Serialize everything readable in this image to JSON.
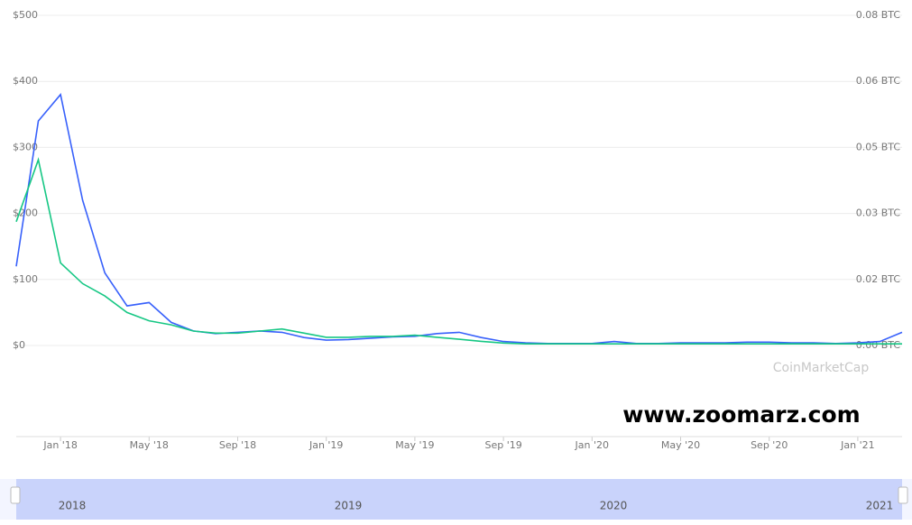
{
  "chart_data": {
    "type": "line",
    "x": [
      "2017-11",
      "2017-12",
      "2018-01",
      "2018-02",
      "2018-03",
      "2018-04",
      "2018-05",
      "2018-06",
      "2018-07",
      "2018-08",
      "2018-09",
      "2018-10",
      "2018-11",
      "2018-12",
      "2019-01",
      "2019-02",
      "2019-03",
      "2019-04",
      "2019-05",
      "2019-06",
      "2019-07",
      "2019-08",
      "2019-09",
      "2019-10",
      "2019-11",
      "2019-12",
      "2020-01",
      "2020-02",
      "2020-03",
      "2020-04",
      "2020-05",
      "2020-06",
      "2020-07",
      "2020-08",
      "2020-09",
      "2020-10",
      "2020-11",
      "2020-12",
      "2021-01",
      "2021-02",
      "2021-03"
    ],
    "xlim": [
      "2017-11",
      "2021-03"
    ],
    "xticks": [
      {
        "value": "2018-01",
        "label": "Jan '18"
      },
      {
        "value": "2018-05",
        "label": "May '18"
      },
      {
        "value": "2018-09",
        "label": "Sep '18"
      },
      {
        "value": "2019-01",
        "label": "Jan '19"
      },
      {
        "value": "2019-05",
        "label": "May '19"
      },
      {
        "value": "2019-09",
        "label": "Sep '19"
      },
      {
        "value": "2020-01",
        "label": "Jan '20"
      },
      {
        "value": "2020-05",
        "label": "May '20"
      },
      {
        "value": "2020-09",
        "label": "Sep '20"
      },
      {
        "value": "2021-01",
        "label": "Jan '21"
      }
    ],
    "ylim": [
      0,
      500
    ],
    "yticks": [
      {
        "value": 0,
        "label": "$0"
      },
      {
        "value": 100,
        "label": "$100"
      },
      {
        "value": 200,
        "label": "$200"
      },
      {
        "value": 300,
        "label": "$300"
      },
      {
        "value": 400,
        "label": "$400"
      },
      {
        "value": 500,
        "label": "$500"
      }
    ],
    "y2lim": [
      0,
      0.08
    ],
    "y2ticks": [
      {
        "value": 0,
        "label": "0.00 BTC"
      },
      {
        "value": 0.016,
        "label": "0.02 BTC"
      },
      {
        "value": 0.032,
        "label": "0.03 BTC"
      },
      {
        "value": 0.048,
        "label": "0.05 BTC"
      },
      {
        "value": 0.064,
        "label": "0.06 BTC"
      },
      {
        "value": 0.08,
        "label": "0.08 BTC"
      }
    ],
    "grid": true,
    "series": [
      {
        "color": "#3861fb",
        "values": [
          120,
          340,
          380,
          220,
          110,
          60,
          65,
          35,
          22,
          18,
          20,
          22,
          20,
          12,
          8,
          9,
          11,
          13,
          14,
          18,
          20,
          12,
          6,
          4,
          3,
          3,
          3,
          6,
          3,
          3,
          4,
          4,
          4,
          5,
          5,
          4,
          4,
          3,
          4,
          6,
          20
        ]
      },
      {
        "color": "#16c784",
        "axis": "y2",
        "values": [
          0.03,
          0.045,
          0.02,
          0.015,
          0.012,
          0.008,
          0.006,
          0.005,
          0.0035,
          0.003,
          0.003,
          0.0035,
          0.004,
          0.003,
          0.002,
          0.002,
          0.0022,
          0.0022,
          0.0025,
          0.002,
          0.0015,
          0.001,
          0.0006,
          0.0004,
          0.0004,
          0.0004,
          0.0004,
          0.0004,
          0.0004,
          0.0004,
          0.0004,
          0.0004,
          0.0004,
          0.0004,
          0.0004,
          0.0004,
          0.0004,
          0.0004,
          0.0004,
          0.0004,
          0.0004
        ]
      }
    ],
    "watermark": "CoinMarketCap",
    "annotation": "www.zoomarz.com",
    "navigator_labels": [
      "2018",
      "2019",
      "2020",
      "2021"
    ]
  }
}
